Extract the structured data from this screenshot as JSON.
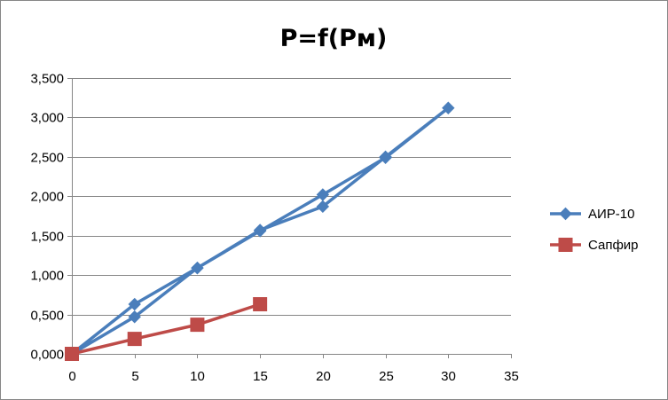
{
  "chart_data": {
    "type": "line",
    "title": "P=f(Pм)",
    "xlabel": "",
    "ylabel": "",
    "xlim": [
      0,
      35
    ],
    "ylim": [
      0,
      3.5
    ],
    "x_ticks": [
      "0",
      "5",
      "10",
      "15",
      "20",
      "25",
      "30",
      "35"
    ],
    "y_ticks": [
      "0,000",
      "0,500",
      "1,000",
      "1,500",
      "2,000",
      "2,500",
      "3,000",
      "3,500"
    ],
    "grid": "horizontal major gridlines",
    "legend_position": "right",
    "series": [
      {
        "name": "АИР-10",
        "color": "#4a7ebb",
        "marker": "diamond",
        "x": [
          0,
          5,
          10,
          15,
          20,
          25,
          30,
          25,
          20,
          15,
          10,
          5,
          0
        ],
        "y": [
          0,
          0.63,
          1.09,
          1.56,
          2.02,
          2.49,
          3.12,
          2.5,
          1.87,
          1.57,
          1.09,
          0.47,
          0
        ]
      },
      {
        "name": "Сапфир",
        "color": "#be4b48",
        "marker": "square",
        "x": [
          0,
          5,
          10,
          15
        ],
        "y": [
          0,
          0.19,
          0.37,
          0.63
        ]
      }
    ]
  }
}
